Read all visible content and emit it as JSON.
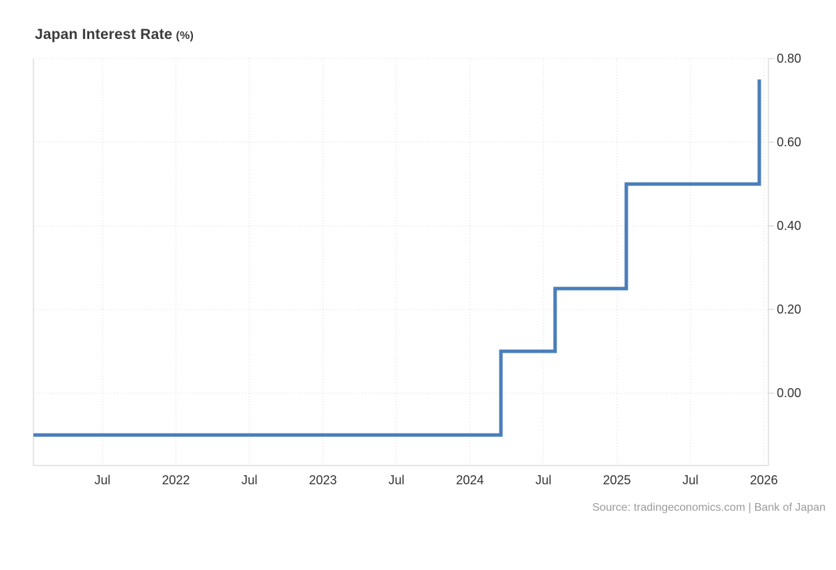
{
  "header": {
    "title": "Japan Interest Rate",
    "unit": "(%)"
  },
  "footer": {
    "source": "Source: tradingeconomics.com | Bank of Japan"
  },
  "colors": {
    "line": "#4a7ebb",
    "grid": "#d6d6d6",
    "axis": "#cccccc",
    "tick_text": "#333333",
    "title_text": "#3b3b3b",
    "source_text": "#9b9b9b",
    "background": "#ffffff"
  },
  "chart_data": {
    "type": "line",
    "step": true,
    "title": "Japan Interest Rate (%)",
    "xlabel": "",
    "ylabel": "%",
    "grid": "dotted",
    "legend": "none",
    "series": [
      {
        "name": "Japan Interest Rate",
        "color": "#4a7ebb",
        "points": [
          {
            "date": "Jan 2021",
            "x": 2021.031,
            "value": -0.1
          },
          {
            "date": "Mar 2024",
            "x": 2024.211,
            "value": 0.1
          },
          {
            "date": "Aug 2024",
            "x": 2024.58,
            "value": 0.25
          },
          {
            "date": "Jan 2025",
            "x": 2025.064,
            "value": 0.5
          },
          {
            "date": "Dec 2025",
            "x": 2025.969,
            "value": 0.75
          }
        ]
      }
    ],
    "x_axis": {
      "range": [
        2021.031,
        2026.031
      ],
      "ticks": [
        {
          "label": "Jul",
          "x": 2021.5
        },
        {
          "label": "2022",
          "x": 2022.0
        },
        {
          "label": "Jul",
          "x": 2022.5
        },
        {
          "label": "2023",
          "x": 2023.0
        },
        {
          "label": "Jul",
          "x": 2023.5
        },
        {
          "label": "2024",
          "x": 2024.0
        },
        {
          "label": "Jul",
          "x": 2024.5
        },
        {
          "label": "2025",
          "x": 2025.0
        },
        {
          "label": "Jul",
          "x": 2025.5
        },
        {
          "label": "2026",
          "x": 2026.0
        }
      ]
    },
    "y_axis": {
      "position": "right",
      "range": [
        -0.173,
        0.8
      ],
      "ticks": [
        {
          "label": "0.00",
          "value": 0.0
        },
        {
          "label": "0.20",
          "value": 0.2
        },
        {
          "label": "0.40",
          "value": 0.4
        },
        {
          "label": "0.60",
          "value": 0.6
        },
        {
          "label": "0.80",
          "value": 0.8
        }
      ]
    }
  }
}
